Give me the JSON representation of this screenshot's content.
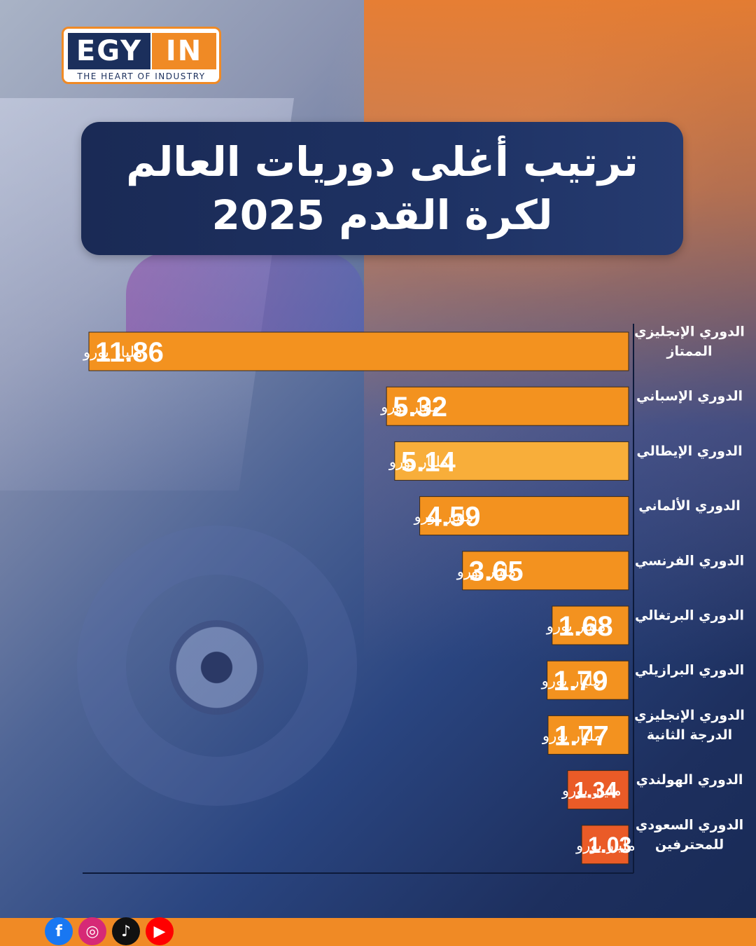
{
  "brand": {
    "main_left": "EGY",
    "main_right": "IN",
    "tagline": "THE HEART OF INDUSTRY"
  },
  "title": {
    "line1": "ترتيب أغلى دوريات العالم",
    "line2": "لكرة القدم 2025"
  },
  "chart_data": {
    "type": "bar",
    "orientation": "horizontal",
    "unit_label": "مليار يورو",
    "categories": [
      [
        "الدوري الإنجليزي",
        "الممتاز"
      ],
      [
        "الدوري الإسباني"
      ],
      [
        "الدوري الإيطالي"
      ],
      [
        "الدوري الألماني"
      ],
      [
        "الدوري الفرنسي"
      ],
      [
        "الدوري البرتغالي"
      ],
      [
        "الدوري البرازيلي"
      ],
      [
        "الدوري الإنجليزي",
        "الدرجة الثانية"
      ],
      [
        "الدوري الهولندي"
      ],
      [
        "الدوري السعودي",
        "للمحترفين"
      ]
    ],
    "values": [
      11.86,
      5.32,
      5.14,
      4.59,
      3.65,
      1.68,
      1.79,
      1.77,
      1.34,
      1.03
    ],
    "value_labels": [
      "11.86",
      "5.32",
      "5.14",
      "4.59",
      "3.65",
      "1.68",
      "1.79",
      "1.77",
      "1.34",
      "1.03"
    ],
    "colors": [
      "#f3921f",
      "#f3921f",
      "#f8ae3a",
      "#f3921f",
      "#f3921f",
      "#f3921f",
      "#f3921f",
      "#f3921f",
      "#ea5b27",
      "#ea5b27"
    ],
    "xlim": [
      0,
      11.86
    ],
    "grid": false,
    "legend": "none"
  },
  "social": [
    {
      "icon": "facebook-icon",
      "glyph": "f",
      "color": "#1877f2"
    },
    {
      "icon": "instagram-icon",
      "glyph": "◎",
      "color": "#d62976"
    },
    {
      "icon": "tiktok-icon",
      "glyph": "♪",
      "color": "#111111"
    },
    {
      "icon": "youtube-icon",
      "glyph": "▶",
      "color": "#ff0000"
    }
  ]
}
